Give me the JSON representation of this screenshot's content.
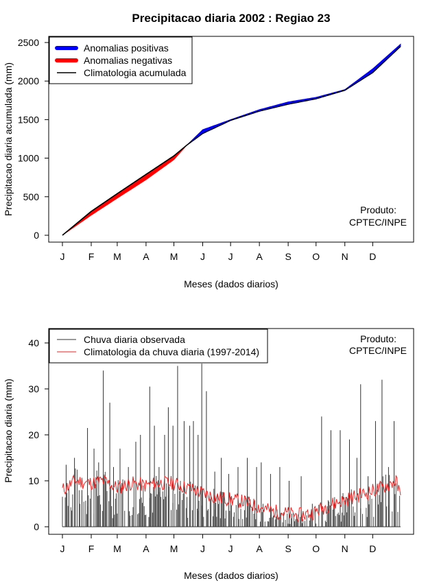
{
  "page_title": "Precipitacao diaria 2002 : Regiao 23",
  "colors": {
    "positive": "#0000ff",
    "negative": "#ff0000",
    "climatology": "#000000",
    "observed": "#303030",
    "clim_daily": "#ee2222"
  },
  "chart_data": [
    {
      "type": "area",
      "title": "Precipitacao diaria 2002 : Regiao 23",
      "xlabel": "Meses (dados diarios)",
      "ylabel": "Precipitacao diaria acumulada (mm)",
      "month_ticks": [
        "J",
        "F",
        "M",
        "A",
        "M",
        "J",
        "J",
        "A",
        "S",
        "O",
        "N",
        "D"
      ],
      "month_start_days": [
        1,
        32,
        60,
        91,
        121,
        152,
        182,
        213,
        244,
        274,
        305,
        335
      ],
      "xlim": [
        1,
        365
      ],
      "ylim": [
        0,
        2500
      ],
      "yticks": [
        0,
        500,
        1000,
        1500,
        2000,
        2500
      ],
      "legend": [
        "Anomalias positivas",
        "Anomalias negativas",
        "Climatologia acumulada"
      ],
      "legend_position": "top-left",
      "annotation": [
        "Produto:",
        "CPTEC/INPE"
      ],
      "series": [
        {
          "name": "Climatologia acumulada",
          "x": [
            1,
            32,
            60,
            91,
            121,
            135,
            152,
            182,
            213,
            244,
            274,
            305,
            335,
            365
          ],
          "values": [
            0,
            310,
            540,
            790,
            1030,
            1170,
            1320,
            1490,
            1610,
            1700,
            1770,
            1880,
            2110,
            2450
          ]
        },
        {
          "name": "Chuva acumulada observada",
          "x": [
            1,
            32,
            60,
            91,
            121,
            135,
            152,
            182,
            213,
            244,
            274,
            305,
            335,
            365
          ],
          "values": [
            0,
            260,
            480,
            720,
            980,
            1170,
            1370,
            1500,
            1630,
            1730,
            1790,
            1890,
            2160,
            2480
          ]
        }
      ]
    },
    {
      "type": "line",
      "xlabel": "Meses (dados diarios)",
      "ylabel": "Precipitacao diaria (mm)",
      "month_ticks": [
        "J",
        "F",
        "M",
        "A",
        "M",
        "J",
        "J",
        "A",
        "S",
        "O",
        "N",
        "D"
      ],
      "month_start_days": [
        1,
        32,
        60,
        91,
        121,
        152,
        182,
        213,
        244,
        274,
        305,
        335
      ],
      "xlim": [
        1,
        365
      ],
      "ylim": [
        0,
        40
      ],
      "yticks": [
        0,
        10,
        20,
        30,
        40
      ],
      "legend": [
        "Chuva diaria observada",
        "Climatologia da chuva diaria (1997-2014)"
      ],
      "legend_position": "top-left",
      "annotation": [
        "Produto:",
        "CPTEC/INPE"
      ],
      "series": [
        {
          "name": "Chuva diaria observada",
          "x": [
            5,
            14,
            22,
            28,
            35,
            40,
            45,
            52,
            56,
            63,
            72,
            80,
            85,
            95,
            100,
            105,
            111,
            115,
            120,
            125,
            132,
            138,
            142,
            147,
            151,
            156,
            165,
            172,
            180,
            190,
            200,
            210,
            215,
            225,
            235,
            245,
            258,
            270,
            280,
            290,
            300,
            310,
            318,
            322,
            330,
            338,
            345,
            352,
            358
          ],
          "values": [
            13.5,
            15,
            8,
            21.5,
            17,
            14,
            34,
            27,
            13,
            17,
            13,
            18.5,
            20,
            30.5,
            22,
            13,
            20,
            26,
            22,
            35,
            23,
            22,
            23,
            20,
            35.5,
            29.5,
            12,
            15,
            11.5,
            13,
            15,
            13,
            14,
            11.5,
            13,
            10,
            11,
            5,
            24,
            21,
            21,
            19,
            15,
            31,
            11,
            23,
            32,
            13,
            23
          ]
        },
        {
          "name": "Climatologia da chuva diaria (1997-2014)",
          "x": [
            1,
            15,
            30,
            45,
            60,
            75,
            90,
            105,
            120,
            135,
            150,
            165,
            180,
            195,
            210,
            225,
            240,
            255,
            270,
            285,
            300,
            315,
            330,
            345,
            360,
            365
          ],
          "values": [
            8,
            10,
            9.5,
            10,
            8.5,
            9.5,
            9,
            9.5,
            9.5,
            8.5,
            7.5,
            6.5,
            6,
            5.5,
            4.5,
            3.5,
            3,
            2.5,
            3,
            4.5,
            5.5,
            6.5,
            7.5,
            8.5,
            10,
            6.5
          ]
        }
      ]
    }
  ]
}
